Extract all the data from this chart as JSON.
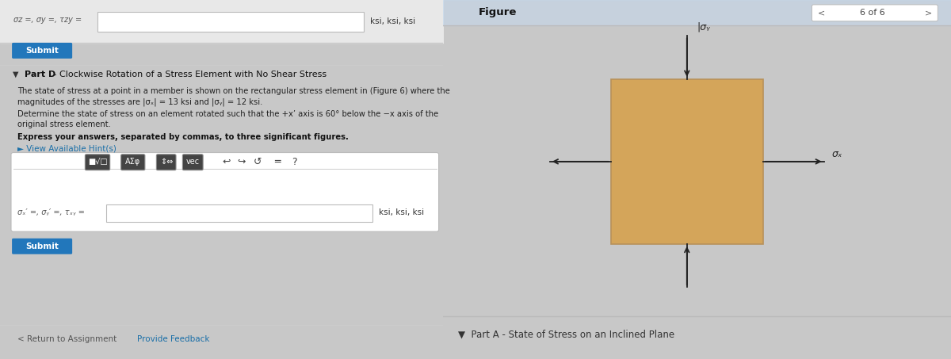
{
  "left_bg": "#ececec",
  "right_bg": "#d8d8d8",
  "fig_bg": "#c8c8c8",
  "top_row_bg": "#e8e8e8",
  "top_label_text": "σz =, σy =, τzy =",
  "top_units_text": "ksi, ksi, ksi",
  "submit_color": "#2277bb",
  "submit_text": "Submit",
  "submit_text_color": "#ffffff",
  "part_d_arrow": "▼",
  "part_d_bold": "Part D",
  "part_d_rest": " - Clockwise Rotation of a Stress Element with No Shear Stress",
  "para1_line1": "The state of stress at a point in a member is shown on the rectangular stress element in (Figure 6) where the",
  "para1_line2": "magnitudes of the stresses are |σₓ| = 13 ksi and |σᵧ| = 12 ksi.",
  "para2_line1": "Determine the state of stress on an element rotated such that the +x’ axis is 60° below the −x axis of the",
  "para2_line2": "original stress element.",
  "para3": "Express your answers, separated by commas, to three significant figures.",
  "hint": "► View Available Hint(s)",
  "hint_color": "#1a6fa8",
  "toolbar_btn1": "■√□",
  "toolbar_btn2": "AΣφ",
  "toolbar_btn3": "⇕⇔",
  "toolbar_btn4": "vec",
  "toolbar_icon1": "↩",
  "toolbar_icon2": "↪",
  "toolbar_icon3": "↺",
  "toolbar_icon4": "═",
  "toolbar_icon5": "?",
  "ans_label": "σₓ′ =, σᵧ′ =, τₓᵧ =",
  "ans_units": "ksi, ksi, ksi",
  "return_text": "< Return to Assignment",
  "feedback_text": "Provide Feedback",
  "feedback_color": "#1a6fa8",
  "fig_label": "Figure",
  "fig_nav": "6 of 6",
  "box_color": "#d4a55a",
  "box_edge": "#b8915a",
  "sigma_x": "σₓ",
  "sigma_y": "|σᵧ",
  "sigma_y_clean": "σᵧ",
  "part_a_text": "▼  Part A - State of Stress on an Inclined Plane"
}
